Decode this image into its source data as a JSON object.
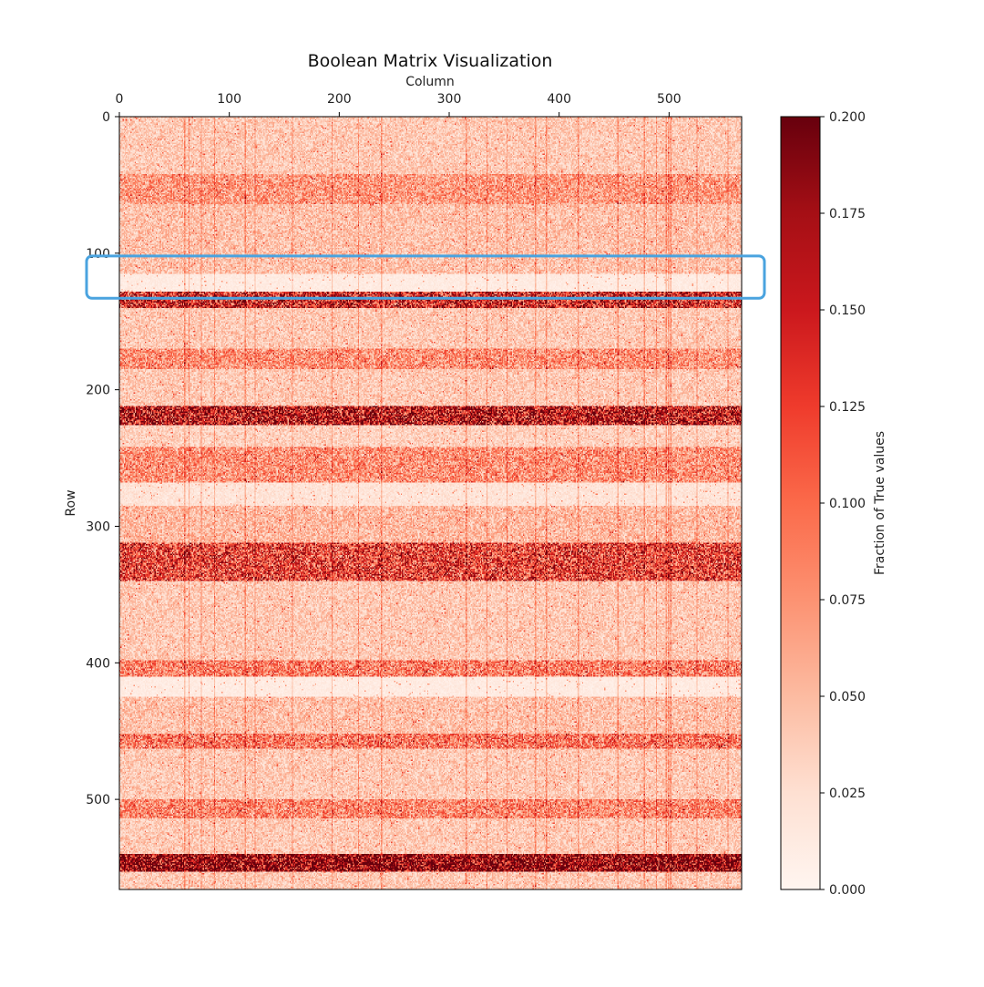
{
  "chart_data": {
    "type": "heatmap",
    "title": "Boolean Matrix Visualization",
    "xlabel": "Column",
    "ylabel": "Row",
    "colorbar_label": "Fraction of True values",
    "colormap": "Reds",
    "colormap_stops": [
      "#fff5f0",
      "#fee0d2",
      "#fcbba1",
      "#fc9272",
      "#fb6a4a",
      "#ef3b2c",
      "#cb181d",
      "#a50f15",
      "#67000d"
    ],
    "rows": 566,
    "cols": 566,
    "xlim": [
      0,
      566
    ],
    "ylim": [
      0,
      566
    ],
    "x_ticks": [
      0,
      100,
      200,
      300,
      400,
      500
    ],
    "x_tick_labels": [
      "0",
      "100",
      "200",
      "300",
      "400",
      "500"
    ],
    "y_ticks": [
      0,
      100,
      200,
      300,
      400,
      500
    ],
    "y_tick_labels": [
      "0",
      "100",
      "200",
      "300",
      "400",
      "500"
    ],
    "colorbar_range": [
      0,
      0.2
    ],
    "colorbar_ticks": [
      0,
      0.025,
      0.05,
      0.075,
      0.1,
      0.125,
      0.15,
      0.175,
      0.2
    ],
    "colorbar_tick_labels": [
      "0.000",
      "0.025",
      "0.050",
      "0.075",
      "0.100",
      "0.125",
      "0.150",
      "0.175",
      "0.200"
    ],
    "row_bands": [
      {
        "rows": [
          0,
          42
        ],
        "mean_fraction": 0.04
      },
      {
        "rows": [
          42,
          64
        ],
        "mean_fraction": 0.07
      },
      {
        "rows": [
          64,
          115
        ],
        "mean_fraction": 0.045
      },
      {
        "rows": [
          115,
          128
        ],
        "mean_fraction": 0.012
      },
      {
        "rows": [
          128,
          140
        ],
        "mean_fraction": 0.14
      },
      {
        "rows": [
          140,
          170
        ],
        "mean_fraction": 0.04
      },
      {
        "rows": [
          170,
          185
        ],
        "mean_fraction": 0.075
      },
      {
        "rows": [
          185,
          212
        ],
        "mean_fraction": 0.04
      },
      {
        "rows": [
          212,
          226
        ],
        "mean_fraction": 0.16
      },
      {
        "rows": [
          226,
          242
        ],
        "mean_fraction": 0.035
      },
      {
        "rows": [
          242,
          268
        ],
        "mean_fraction": 0.075
      },
      {
        "rows": [
          268,
          285
        ],
        "mean_fraction": 0.02
      },
      {
        "rows": [
          285,
          312
        ],
        "mean_fraction": 0.05
      },
      {
        "rows": [
          312,
          340
        ],
        "mean_fraction": 0.12
      },
      {
        "rows": [
          340,
          398
        ],
        "mean_fraction": 0.04
      },
      {
        "rows": [
          398,
          410
        ],
        "mean_fraction": 0.085
      },
      {
        "rows": [
          410,
          425
        ],
        "mean_fraction": 0.012
      },
      {
        "rows": [
          425,
          452
        ],
        "mean_fraction": 0.045
      },
      {
        "rows": [
          452,
          463
        ],
        "mean_fraction": 0.09
      },
      {
        "rows": [
          463,
          500
        ],
        "mean_fraction": 0.04
      },
      {
        "rows": [
          500,
          514
        ],
        "mean_fraction": 0.08
      },
      {
        "rows": [
          514,
          540
        ],
        "mean_fraction": 0.04
      },
      {
        "rows": [
          540,
          553
        ],
        "mean_fraction": 0.2
      },
      {
        "rows": [
          553,
          566
        ],
        "mean_fraction": 0.04
      }
    ],
    "highlight_box": {
      "rows": [
        102,
        133
      ],
      "color": "#4aa3df"
    }
  }
}
